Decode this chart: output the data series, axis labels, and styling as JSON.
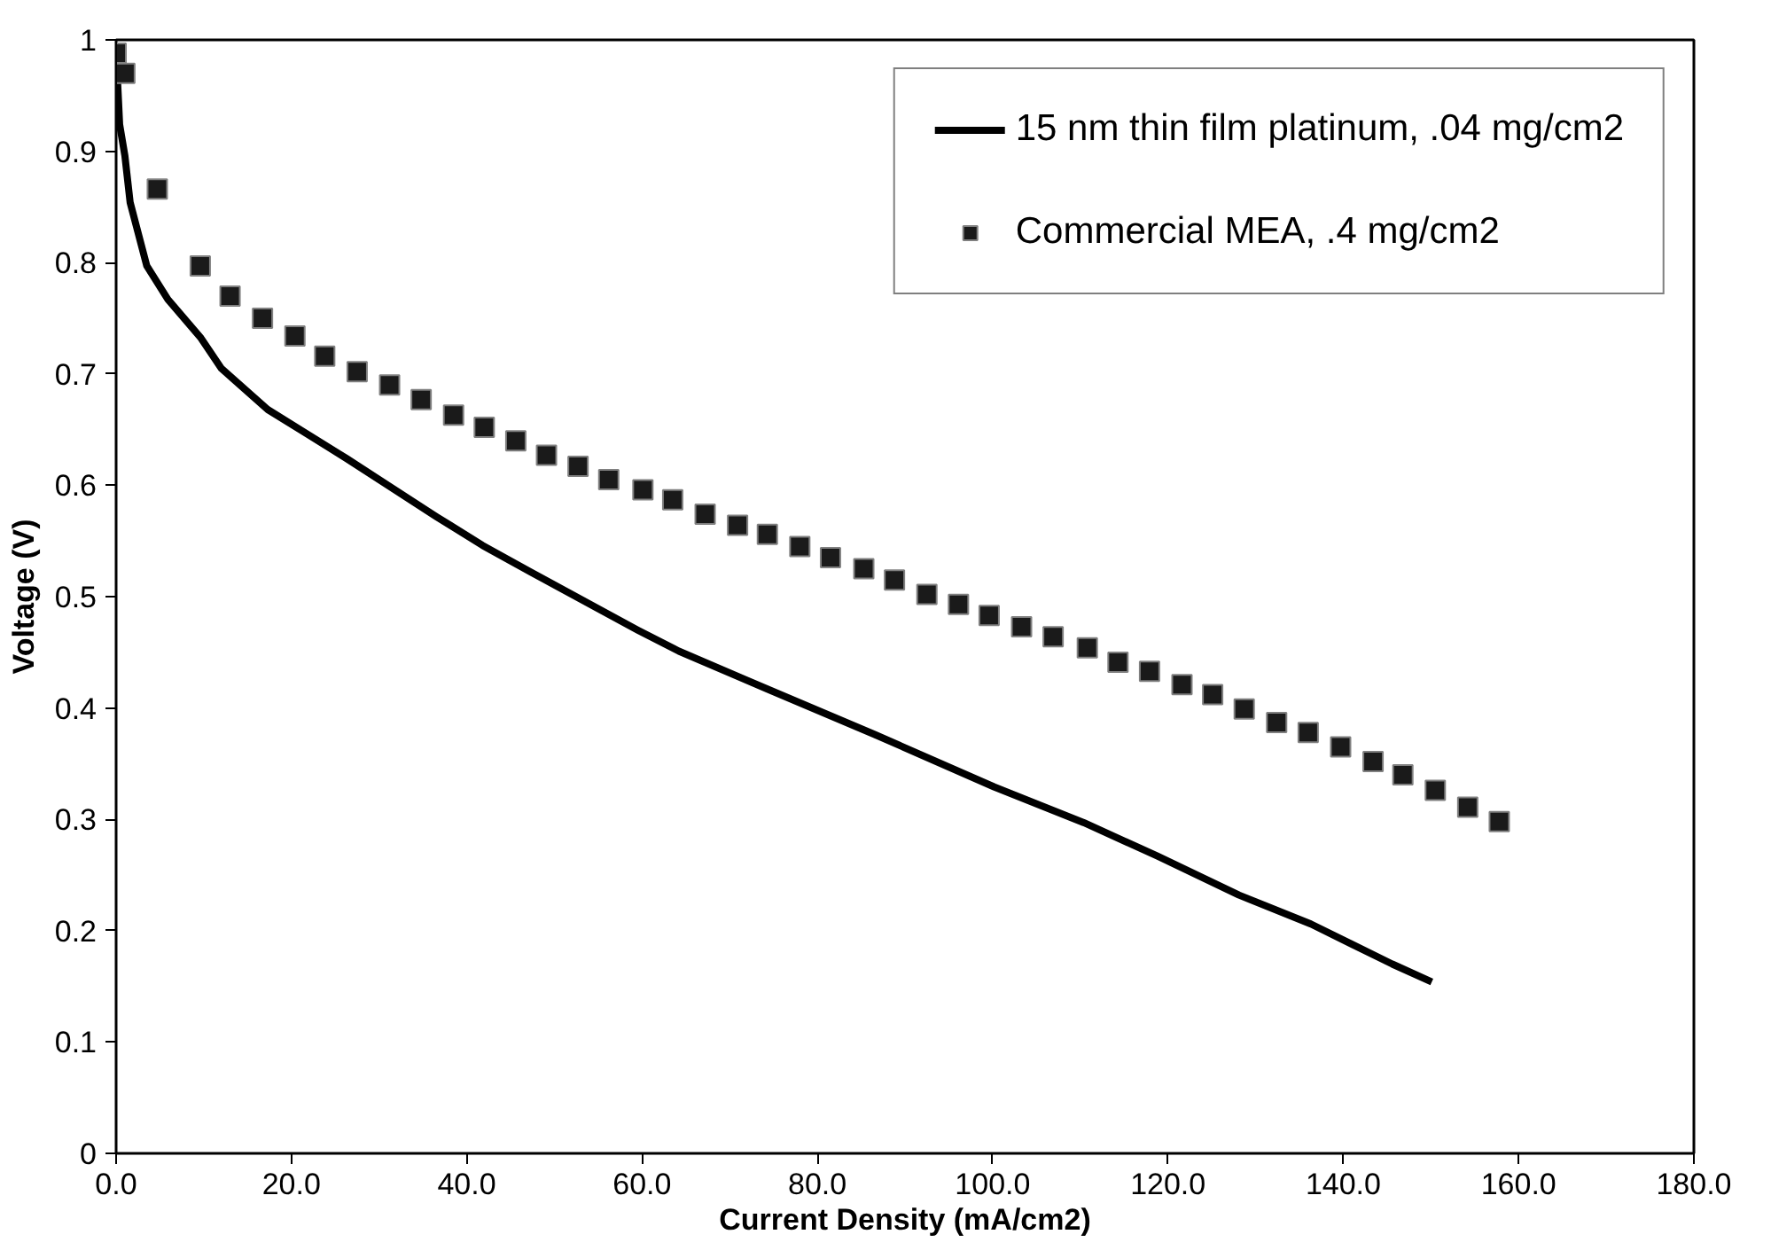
{
  "chart_data": {
    "type": "line",
    "xlabel": "Current Density (mA/cm2)",
    "ylabel": "Voltage (V)",
    "xlim": [
      0,
      180
    ],
    "ylim": [
      0,
      1
    ],
    "xticks": [
      {
        "value": 0,
        "label": "0.0"
      },
      {
        "value": 20,
        "label": "20.0"
      },
      {
        "value": 40,
        "label": "40.0"
      },
      {
        "value": 60,
        "label": "60.0"
      },
      {
        "value": 80,
        "label": "80.0"
      },
      {
        "value": 100,
        "label": "100.0"
      },
      {
        "value": 120,
        "label": "120.0"
      },
      {
        "value": 140,
        "label": "140.0"
      },
      {
        "value": 160,
        "label": "160.0"
      },
      {
        "value": 180,
        "label": "180.0"
      }
    ],
    "yticks": [
      0,
      0.1,
      0.2,
      0.3,
      0.4,
      0.5,
      0.6,
      0.7,
      0.8,
      0.9,
      1
    ],
    "grid": false,
    "legend": "top right",
    "series": [
      {
        "name": "15 nm thin film platinum, .04 mg/cm2",
        "color": "#000000",
        "line_style": "solid",
        "marker": "none",
        "x": [
          0,
          0.4,
          1.0,
          1.6,
          3.5,
          5.9,
          9.6,
          12.0,
          17.3,
          21.4,
          26.3,
          31.0,
          36.5,
          41.8,
          47.3,
          59.5,
          64.2,
          74.3,
          86.6,
          100.2,
          110.4,
          118.8,
          128.1,
          136.3,
          145.6,
          150.1
        ],
        "values": [
          0.99,
          0.924,
          0.896,
          0.854,
          0.797,
          0.767,
          0.733,
          0.705,
          0.668,
          0.648,
          0.624,
          0.6,
          0.572,
          0.546,
          0.522,
          0.47,
          0.451,
          0.417,
          0.376,
          0.329,
          0.297,
          0.267,
          0.232,
          0.206,
          0.17,
          0.154
        ]
      },
      {
        "name": "Commercial MEA, .4 mg/cm2",
        "type": "scatter",
        "color": "#1a1a1a",
        "marker": "square",
        "x": [
          0,
          1.0,
          4.7,
          9.6,
          13.0,
          16.7,
          20.4,
          23.8,
          27.5,
          31.2,
          34.8,
          38.5,
          42.0,
          45.6,
          49.1,
          52.7,
          56.2,
          60.1,
          63.5,
          67.2,
          70.9,
          74.3,
          78.0,
          81.5,
          85.3,
          88.8,
          92.5,
          96.1,
          99.6,
          103.3,
          106.9,
          110.8,
          114.3,
          117.9,
          121.6,
          125.1,
          128.7,
          132.4,
          136.0,
          139.7,
          143.4,
          146.8,
          150.5,
          154.2,
          157.8
        ],
        "values": [
          0.988,
          0.97,
          0.866,
          0.797,
          0.77,
          0.75,
          0.734,
          0.716,
          0.702,
          0.69,
          0.677,
          0.663,
          0.652,
          0.64,
          0.627,
          0.617,
          0.605,
          0.596,
          0.587,
          0.574,
          0.564,
          0.556,
          0.545,
          0.535,
          0.525,
          0.515,
          0.502,
          0.493,
          0.483,
          0.473,
          0.464,
          0.454,
          0.441,
          0.433,
          0.421,
          0.412,
          0.399,
          0.387,
          0.378,
          0.365,
          0.352,
          0.34,
          0.326,
          0.311,
          0.298
        ]
      }
    ]
  }
}
